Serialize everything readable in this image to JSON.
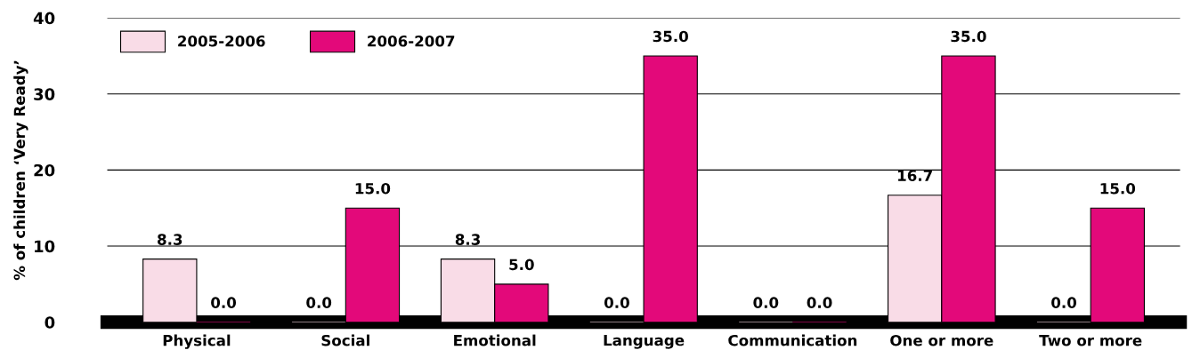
{
  "chart_data": {
    "type": "bar",
    "ylabel": "% of children ‘Very Ready’",
    "categories": [
      "Physical",
      "Social",
      "Emotional",
      "Language",
      "Communication",
      "One or more",
      "Two or more"
    ],
    "series": [
      {
        "name": "2005-2006",
        "color": "#f9dce7",
        "values": [
          8.3,
          0.0,
          8.3,
          0.0,
          0.0,
          16.7,
          0.0
        ],
        "value_labels": [
          "8.3",
          "0.0",
          "8.3",
          "0.0",
          "0.0",
          "16.7",
          "0.0"
        ]
      },
      {
        "name": "2006-2007",
        "color": "#e3097a",
        "values": [
          0.0,
          15.0,
          5.0,
          35.0,
          0.0,
          35.0,
          15.0
        ],
        "value_labels": [
          "0.0",
          "15.0",
          "5.0",
          "35.0",
          "0.0",
          "35.0",
          "15.0"
        ]
      }
    ],
    "ylim": [
      0,
      40
    ],
    "yticks": [
      0,
      10,
      20,
      30,
      40
    ],
    "grid": "y",
    "legend": "top left"
  }
}
